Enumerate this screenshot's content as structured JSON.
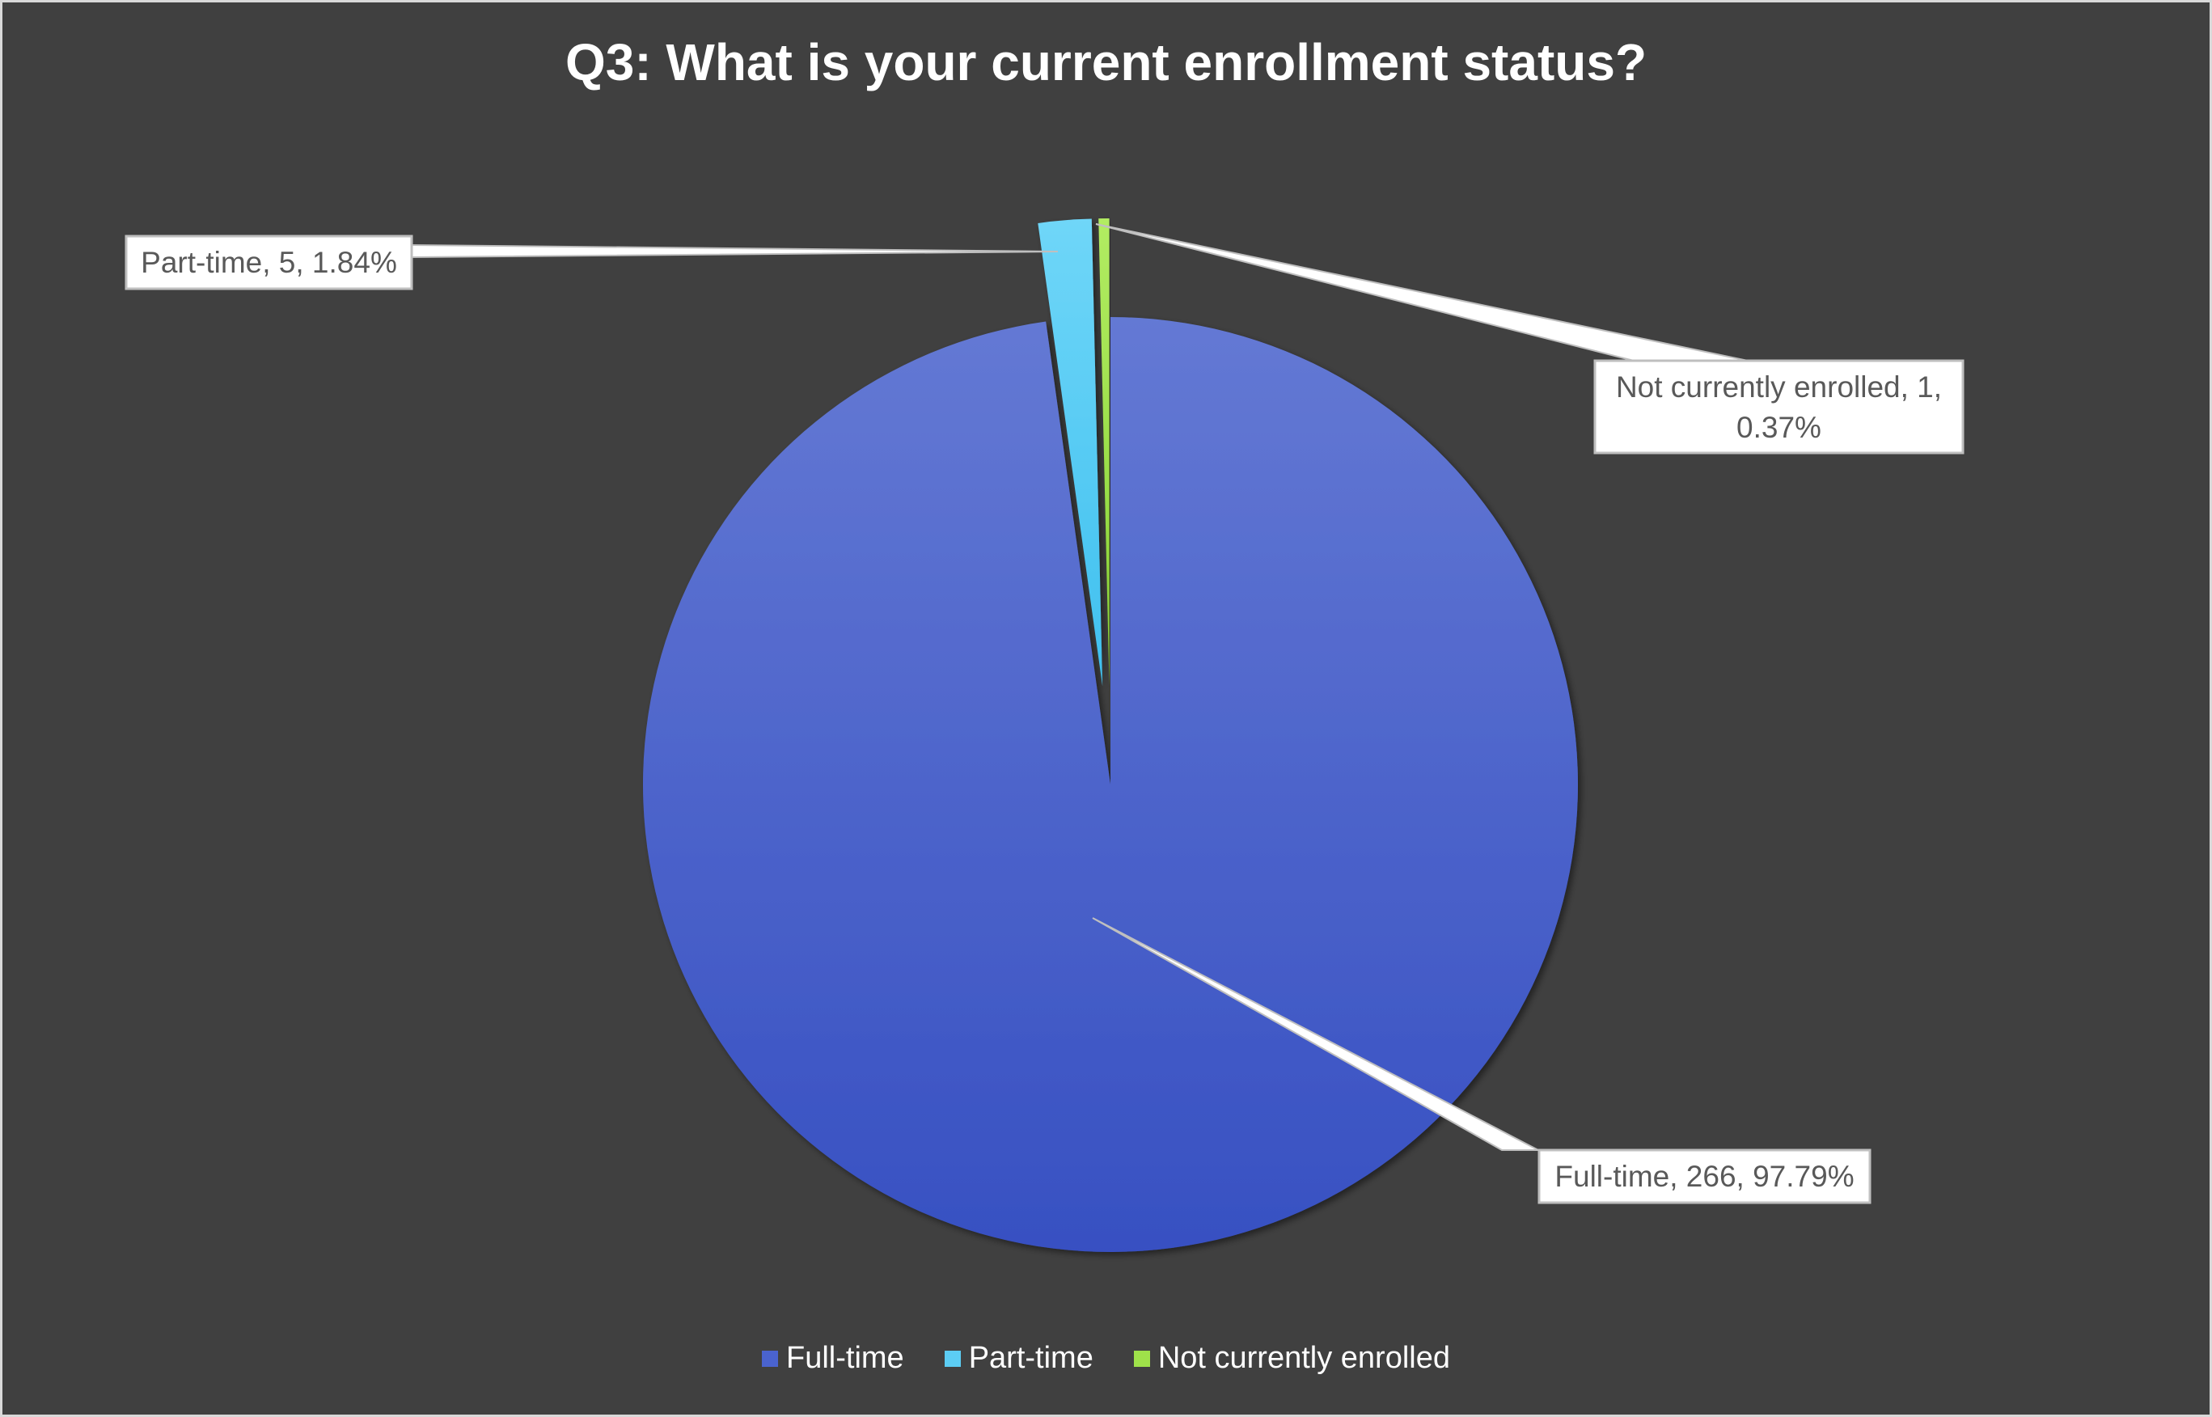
{
  "chart_data": {
    "type": "pie",
    "title": "Q3: What is your current enrollment status?",
    "categories": [
      "Full-time",
      "Part-time",
      "Not currently enrolled"
    ],
    "values": [
      266,
      5,
      1
    ],
    "percentages": [
      "97.79%",
      "1.84%",
      "0.37%"
    ],
    "data_labels": [
      "Full-time, 266, 97.79%",
      "Part-time, 5, 1.84%",
      "Not currently enrolled, 1, 0.37%"
    ],
    "colors": [
      "#4a63cf",
      "#5ccdf4",
      "#9fe24a"
    ],
    "legend_position": "bottom",
    "start_angle_deg": 0,
    "direction": "clockwise"
  }
}
